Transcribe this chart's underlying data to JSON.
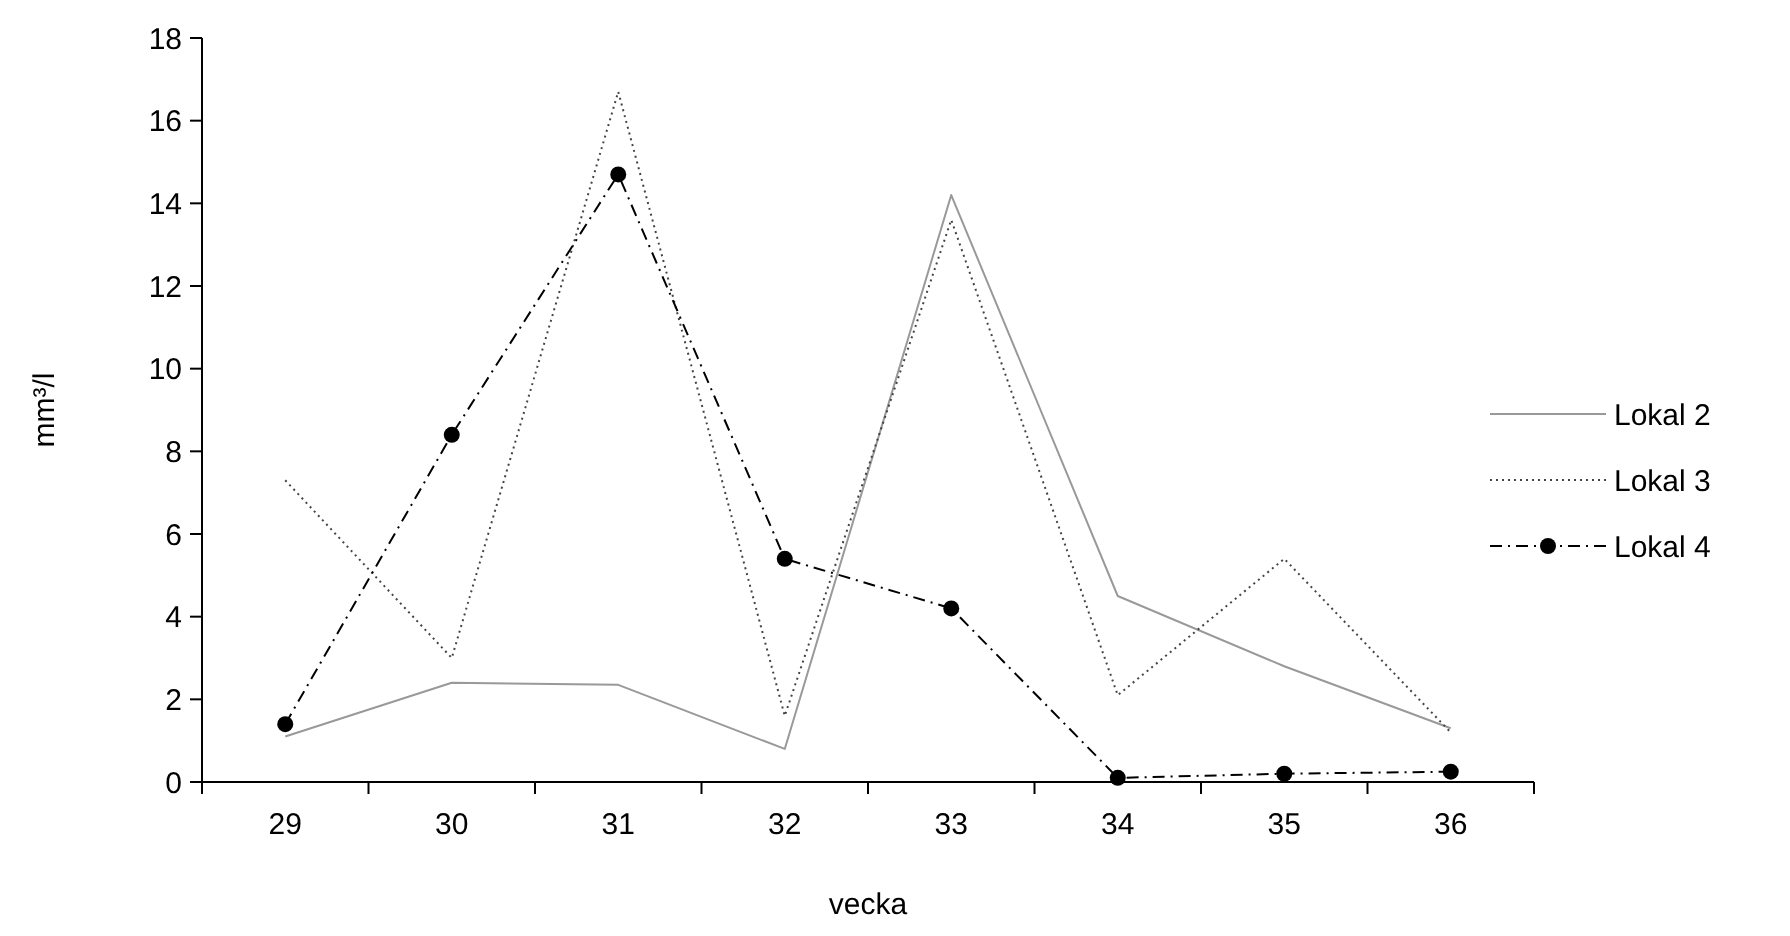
{
  "chart_data": {
    "type": "line",
    "xlabel": "vecka",
    "ylabel": "mm³/l",
    "categories": [
      "29",
      "30",
      "31",
      "32",
      "33",
      "34",
      "35",
      "36"
    ],
    "ylim": [
      0,
      18
    ],
    "yticks": [
      0,
      2,
      4,
      6,
      8,
      10,
      12,
      14,
      16,
      18
    ],
    "legend": "right",
    "grid": false,
    "series": [
      {
        "name": "Lokal 2",
        "color": "#999999",
        "line_style": "solid",
        "marker": "none",
        "values": [
          1.1,
          2.4,
          2.35,
          0.8,
          14.2,
          4.5,
          2.8,
          1.3
        ]
      },
      {
        "name": "Lokal 3",
        "color": "#444444",
        "line_style": "dotted",
        "marker": "none",
        "values": [
          7.3,
          3.0,
          16.7,
          1.6,
          13.6,
          2.1,
          5.4,
          1.2
        ]
      },
      {
        "name": "Lokal 4",
        "color": "#000000",
        "line_style": "dashdot",
        "marker": "circle",
        "values": [
          1.4,
          8.4,
          14.7,
          5.4,
          4.2,
          0.1,
          0.2,
          0.25
        ]
      }
    ]
  }
}
